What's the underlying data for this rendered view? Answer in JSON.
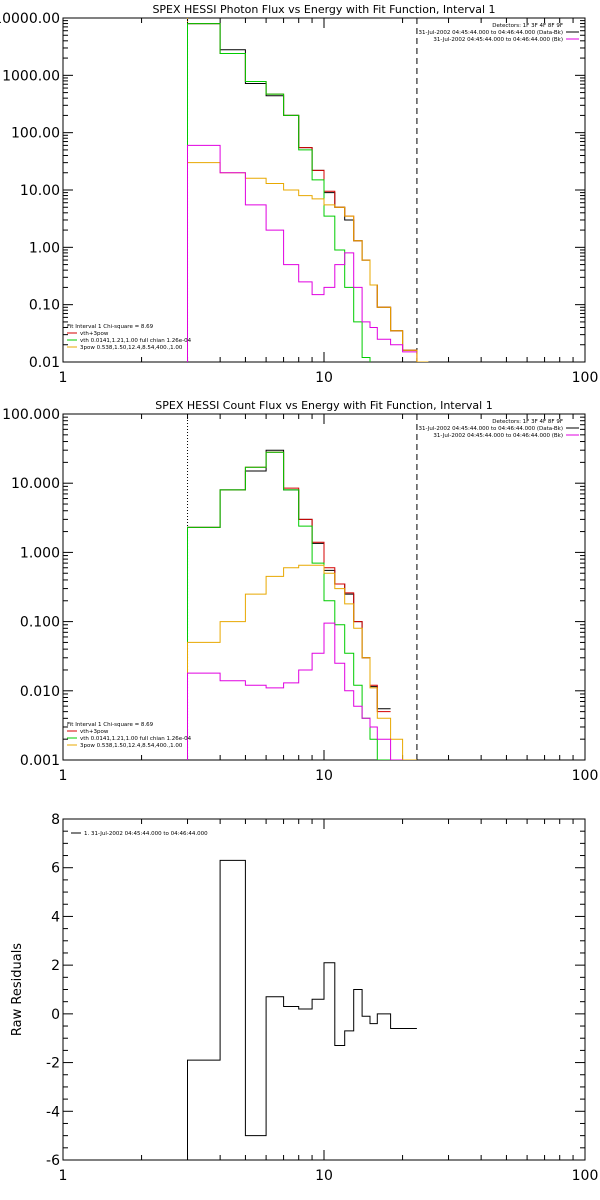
{
  "chart_data": [
    {
      "type": "line",
      "subtype": "step",
      "title": "SPEX HESSI Photon Flux vs Energy with Fit Function, Interval 1",
      "xscale": "log",
      "yscale": "log",
      "xlim": [
        1,
        100
      ],
      "ylim": [
        0.01,
        10000
      ],
      "xticklabels": [
        "1",
        "10",
        "100"
      ],
      "yticklabels": [
        "0.01",
        "0.10",
        "1.00",
        "10.00",
        "100.00",
        "1000.00",
        "10000.00"
      ],
      "vlines": [
        {
          "x": 3.0,
          "style": "dotted",
          "color": "#e8a800"
        },
        {
          "x": 22.7,
          "style": "dashed",
          "color": "#000000"
        }
      ],
      "header_lines": [
        "Detectors: 1F 3F 4F 8F 9F",
        "31-Jul-2002 04:45:44.000 to 04:46:44.000 (Data-Bk)",
        "31-Jul-2002 04:45:44.000 to 04:46:44.000 (Bk)"
      ],
      "header_colors": [
        "",
        "#000000",
        "#e000e0"
      ],
      "legend": [
        {
          "text": "Fit Interval 1    Chi-square = 8.69",
          "color": ""
        },
        {
          "text": "vth+3pow",
          "color": "#d40000"
        },
        {
          "text": "vth 0.0141,1.21,1.00  full chian 1.26e-04",
          "color": "#00cc00"
        },
        {
          "text": "3pow 0.538,1.50,12.4,8.54,400.,1.00",
          "color": "#e8a800"
        }
      ],
      "edges": [
        3.0,
        4.0,
        5.0,
        6.0,
        7.0,
        8.0,
        9.0,
        10.0,
        11.0,
        12.0,
        13.0,
        14.0,
        15.0,
        16.0,
        18.0,
        20.0,
        22.7,
        25.0,
        28.0
      ],
      "series": [
        {
          "name": "data",
          "color": "#000000",
          "values": [
            8000,
            2800,
            720,
            440,
            200,
            55,
            22,
            9.0,
            5.0,
            3.0,
            1.3,
            0.6,
            0.22,
            0.09,
            0.035,
            0.016,
            null,
            null
          ]
        },
        {
          "name": "vth+3pow",
          "color": "#d40000",
          "values": [
            8000,
            2400,
            780,
            470,
            200,
            55,
            22,
            9.5,
            5.0,
            3.5,
            1.3,
            0.6,
            0.22,
            0.09,
            0.035,
            0.016,
            0.01,
            null
          ]
        },
        {
          "name": "vth",
          "color": "#00cc00",
          "values": [
            8000,
            2400,
            780,
            470,
            200,
            50,
            15,
            3.5,
            0.9,
            0.2,
            0.05,
            0.012,
            0.0,
            null,
            null,
            null,
            null,
            null
          ]
        },
        {
          "name": "3pow",
          "color": "#e8a800",
          "values": [
            30,
            20,
            16,
            13,
            10,
            8,
            7,
            5.5,
            5.0,
            3.5,
            1.3,
            0.6,
            0.22,
            0.09,
            0.035,
            0.016,
            0.01,
            0.0
          ]
        },
        {
          "name": "background",
          "color": "#e000e0",
          "values": [
            60,
            20,
            5.5,
            2.0,
            0.5,
            0.25,
            0.15,
            0.2,
            0.5,
            0.8,
            0.2,
            0.05,
            0.04,
            0.025,
            0.02,
            0.015,
            null,
            null
          ]
        }
      ]
    },
    {
      "type": "line",
      "subtype": "step",
      "title": "SPEX HESSI Count Flux vs Energy with Fit Function, Interval 1",
      "xscale": "log",
      "yscale": "log",
      "xlim": [
        1,
        100
      ],
      "ylim": [
        0.001,
        100
      ],
      "xticklabels": [
        "1",
        "10",
        "100"
      ],
      "yticklabels": [
        "0.001",
        "0.010",
        "0.100",
        "1.000",
        "10.000",
        "100.000"
      ],
      "vlines": [
        {
          "x": 3.0,
          "style": "dotted",
          "color": "#000000"
        },
        {
          "x": 22.7,
          "style": "dashed",
          "color": "#000000"
        }
      ],
      "header_lines": [
        "Detectors: 1F 3F 4F 8F 9F",
        "31-Jul-2002 04:45:44.000 to 04:46:44.000 (Data-Bk)",
        "31-Jul-2002 04:45:44.000 to 04:46:44.000 (Bk)"
      ],
      "header_colors": [
        "",
        "#000000",
        "#e000e0"
      ],
      "legend": [
        {
          "text": "Fit Interval 1    Chi-square = 8.69",
          "color": ""
        },
        {
          "text": "vth+3pow",
          "color": "#d40000"
        },
        {
          "text": "vth 0.0141,1.21,1.00  full chian 1.26e-04",
          "color": "#00cc00"
        },
        {
          "text": "3pow 0.538,1.50,12.4,8.54,400.,1.00",
          "color": "#e8a800"
        }
      ],
      "edges": [
        3.0,
        4.0,
        5.0,
        6.0,
        7.0,
        8.0,
        9.0,
        10.0,
        11.0,
        12.0,
        13.0,
        14.0,
        15.0,
        16.0,
        18.0,
        20.0,
        22.7,
        25.0,
        28.0
      ],
      "series": [
        {
          "name": "data",
          "color": "#000000",
          "values": [
            2.3,
            8.0,
            15.0,
            30.0,
            8.0,
            3.0,
            1.35,
            0.55,
            0.35,
            0.25,
            0.1,
            0.03,
            0.0115,
            0.0055,
            null,
            null,
            null,
            null
          ]
        },
        {
          "name": "vth+3pow",
          "color": "#d40000",
          "values": [
            2.3,
            8.0,
            17.0,
            28.0,
            8.5,
            3.0,
            1.4,
            0.6,
            0.35,
            0.26,
            0.1,
            0.03,
            0.012,
            0.005,
            null,
            null,
            null,
            null
          ]
        },
        {
          "name": "vth",
          "color": "#00cc00",
          "values": [
            2.3,
            8.0,
            17.0,
            28.0,
            8.0,
            2.4,
            0.7,
            0.2,
            0.09,
            0.035,
            0.012,
            0.004,
            0.002,
            0.001,
            null,
            null,
            null,
            null
          ]
        },
        {
          "name": "3pow",
          "color": "#e8a800",
          "values": [
            0.05,
            0.1,
            0.25,
            0.45,
            0.6,
            0.65,
            0.65,
            0.5,
            0.3,
            0.18,
            0.08,
            0.03,
            0.011,
            0.004,
            0.002,
            0.001,
            null,
            null
          ]
        },
        {
          "name": "background",
          "color": "#e000e0",
          "values": [
            0.018,
            0.014,
            0.012,
            0.011,
            0.013,
            0.02,
            0.035,
            0.095,
            0.025,
            0.01,
            0.006,
            0.004,
            0.003,
            0.002,
            0.001,
            null,
            null,
            null
          ]
        }
      ]
    },
    {
      "type": "line",
      "subtype": "step",
      "title": "",
      "xscale": "log",
      "yscale": "linear",
      "xlim": [
        1,
        100
      ],
      "ylim": [
        -6,
        8
      ],
      "xticklabels": [
        "1",
        "10",
        "100"
      ],
      "yticklabels": [
        "-6",
        "-4",
        "-2",
        "0",
        "2",
        "4",
        "6",
        "8"
      ],
      "ylabel": "Raw Residuals",
      "legend": [
        {
          "text": "1. 31-Jul-2002 04:45:44.000 to 04:46:44.000",
          "color": "#000000"
        }
      ],
      "edges": [
        3.0,
        4.0,
        5.0,
        6.0,
        7.0,
        8.0,
        9.0,
        10.0,
        11.0,
        12.0,
        13.0,
        14.0,
        15.0,
        16.0,
        18.0,
        20.0,
        22.7
      ],
      "series": [
        {
          "name": "",
          "color": "#000000",
          "values": [
            -1.9,
            6.3,
            -5.0,
            0.7,
            0.3,
            0.2,
            0.6,
            2.1,
            -1.3,
            -0.7,
            1.0,
            -0.1,
            -0.4,
            0.0,
            -0.6,
            -0.6
          ]
        }
      ]
    }
  ]
}
